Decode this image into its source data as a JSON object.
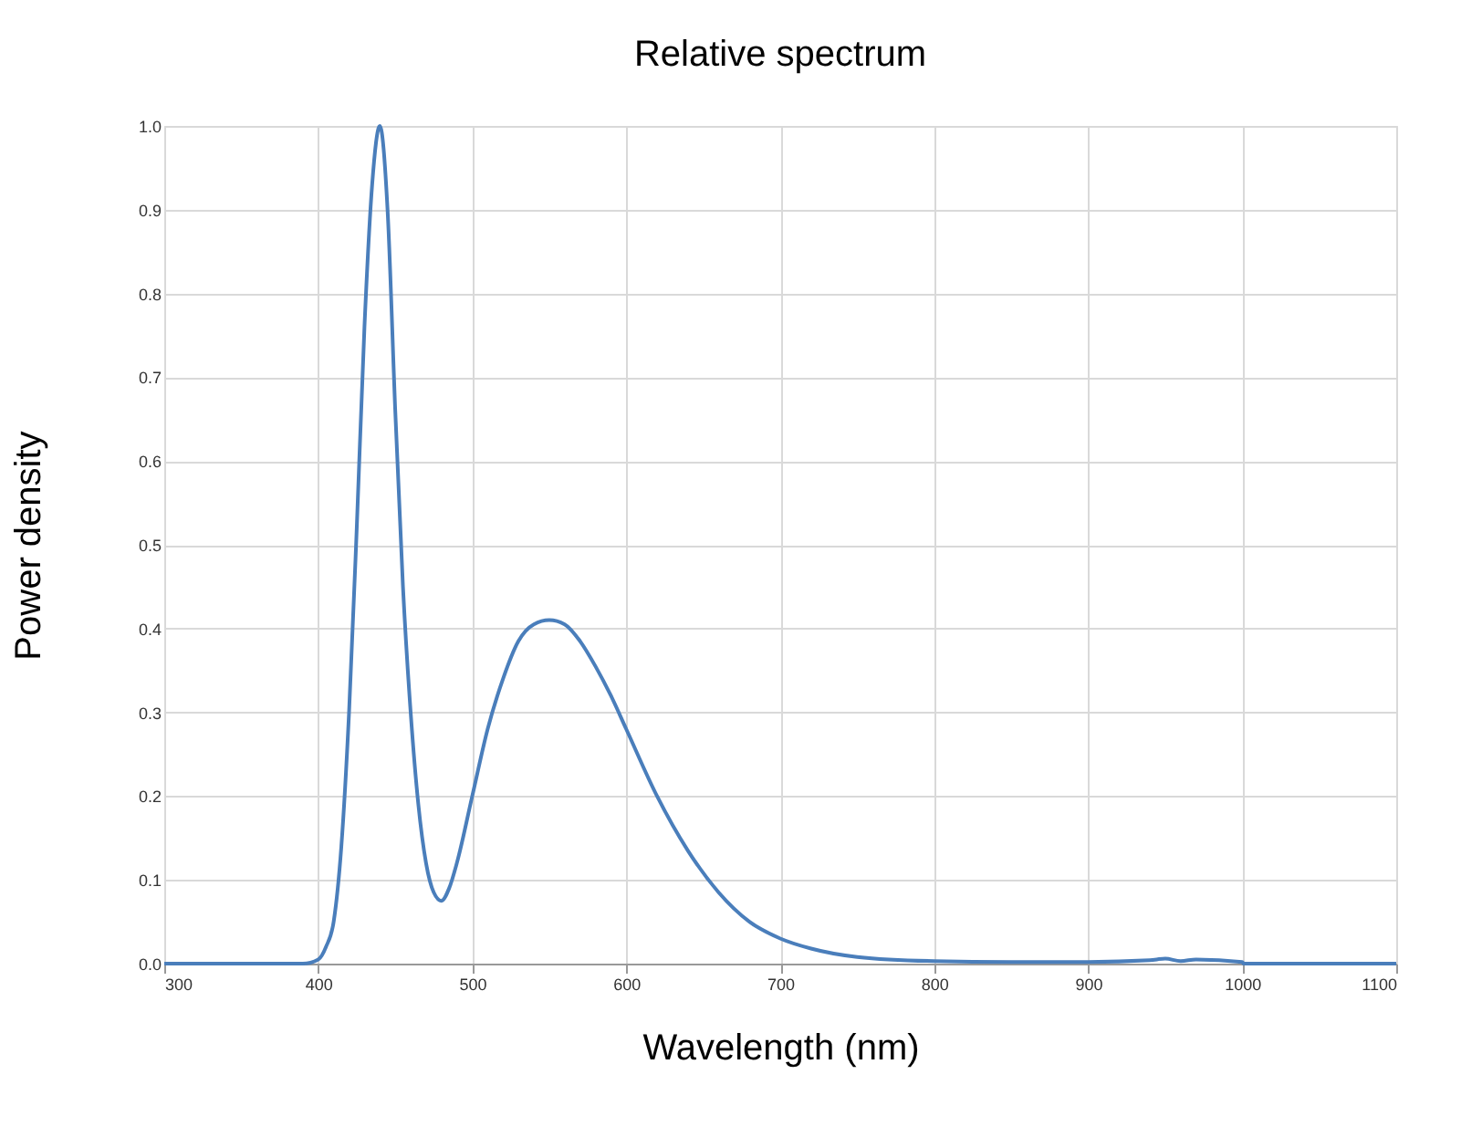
{
  "chart_data": {
    "type": "line",
    "title": "Relative spectrum",
    "xlabel": "Wavelength (nm)",
    "ylabel": "Power density",
    "x": [
      300,
      390,
      400,
      405,
      410,
      415,
      420,
      425,
      430,
      435,
      440,
      445,
      450,
      455,
      460,
      465,
      470,
      475,
      480,
      485,
      490,
      500,
      510,
      520,
      530,
      540,
      550,
      560,
      570,
      580,
      590,
      600,
      620,
      640,
      660,
      680,
      700,
      720,
      750,
      800,
      850,
      900,
      940,
      950,
      960,
      970,
      1000,
      1001,
      1100
    ],
    "series": [
      {
        "color": "#4a7ebb",
        "values": [
          0,
          0,
          0.005,
          0.02,
          0.05,
          0.14,
          0.3,
          0.52,
          0.76,
          0.93,
          1.0,
          0.9,
          0.66,
          0.45,
          0.3,
          0.19,
          0.12,
          0.085,
          0.075,
          0.09,
          0.12,
          0.2,
          0.28,
          0.34,
          0.385,
          0.405,
          0.41,
          0.405,
          0.385,
          0.355,
          0.32,
          0.28,
          0.2,
          0.135,
          0.085,
          0.05,
          0.03,
          0.018,
          0.008,
          0.003,
          0.002,
          0.002,
          0.004,
          0.006,
          0.003,
          0.005,
          0.002,
          0,
          0
        ]
      }
    ],
    "xlim": [
      300,
      1100
    ],
    "xticks": [
      300,
      400,
      500,
      600,
      700,
      800,
      900,
      1000,
      1100
    ],
    "ylim": [
      0,
      1
    ],
    "yticks": [
      {
        "value": 0,
        "label": "0.0"
      },
      0.1,
      0.2,
      0.3,
      0.4,
      0.5,
      0.6,
      0.7,
      0.8,
      0.9,
      {
        "value": 1,
        "label": "1.0"
      }
    ],
    "grid": true,
    "marker": "none",
    "line_style": "solid"
  }
}
